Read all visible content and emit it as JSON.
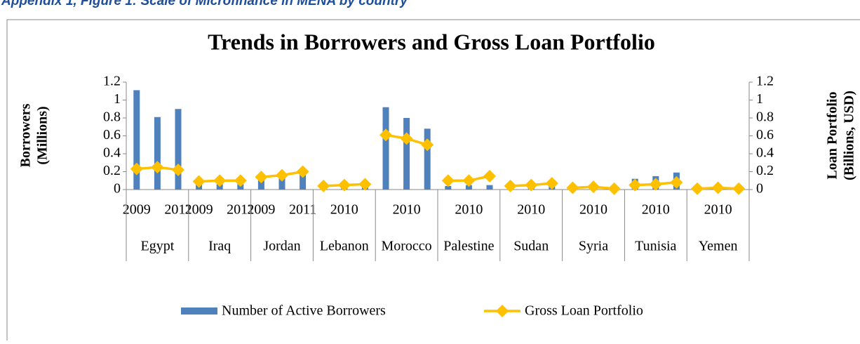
{
  "heading": "Appendix 1, Figure 1: Scale of Microfinance in MENA by country",
  "chart_data": {
    "type": "bar-line",
    "title": "Trends in Borrowers and Gross Loan Portfolio",
    "y_label": [
      "Borrowers",
      "(Millions)"
    ],
    "y2_label": [
      "Loan Portfolio",
      "(Billions, USD)"
    ],
    "groups": [
      "Egypt",
      "Iraq",
      "Jordan",
      "Lebanon",
      "Morocco",
      "Palestine",
      "Sudan",
      "Syria",
      "Tunisia",
      "Yemen"
    ],
    "categories": [
      "2009",
      null,
      "2011",
      "2009",
      null,
      "2011",
      "2009",
      null,
      "2011",
      null,
      "2010",
      null,
      null,
      "2010",
      null,
      null,
      "2010",
      null,
      null,
      "2010",
      null,
      null,
      "2010",
      null,
      null,
      "2010",
      null,
      null,
      "2010",
      null
    ],
    "series": [
      {
        "name": "Number of Active Borrowers",
        "type": "bar",
        "color": "#4f81bd",
        "values": [
          1.11,
          0.81,
          0.9,
          0.07,
          0.06,
          0.06,
          0.12,
          0.13,
          0.17,
          0.03,
          0.03,
          0.03,
          0.92,
          0.8,
          0.68,
          0.04,
          0.05,
          0.05,
          0.02,
          0.03,
          0.05,
          0.02,
          0.02,
          0.01,
          0.12,
          0.15,
          0.19,
          0.01,
          0.01,
          0.01
        ]
      },
      {
        "name": "Gross Loan Portfolio",
        "type": "line",
        "axis": "y2",
        "color": "#ffc000",
        "values": [
          0.23,
          0.25,
          0.22,
          0.09,
          0.1,
          0.1,
          0.14,
          0.16,
          0.2,
          0.04,
          0.05,
          0.06,
          0.61,
          0.57,
          0.5,
          0.1,
          0.1,
          0.15,
          0.04,
          0.05,
          0.07,
          0.02,
          0.03,
          0.01,
          0.05,
          0.06,
          0.08,
          0.01,
          0.02,
          0.01
        ]
      }
    ],
    "ylim": [
      0,
      1.2
    ],
    "yticks": [
      0,
      0.2,
      0.4,
      0.6,
      0.8,
      1,
      1.2
    ],
    "y2lim": [
      0,
      1.2
    ],
    "y2ticks": [
      0,
      0.2,
      0.4,
      0.6,
      0.8,
      1,
      1.2
    ]
  }
}
